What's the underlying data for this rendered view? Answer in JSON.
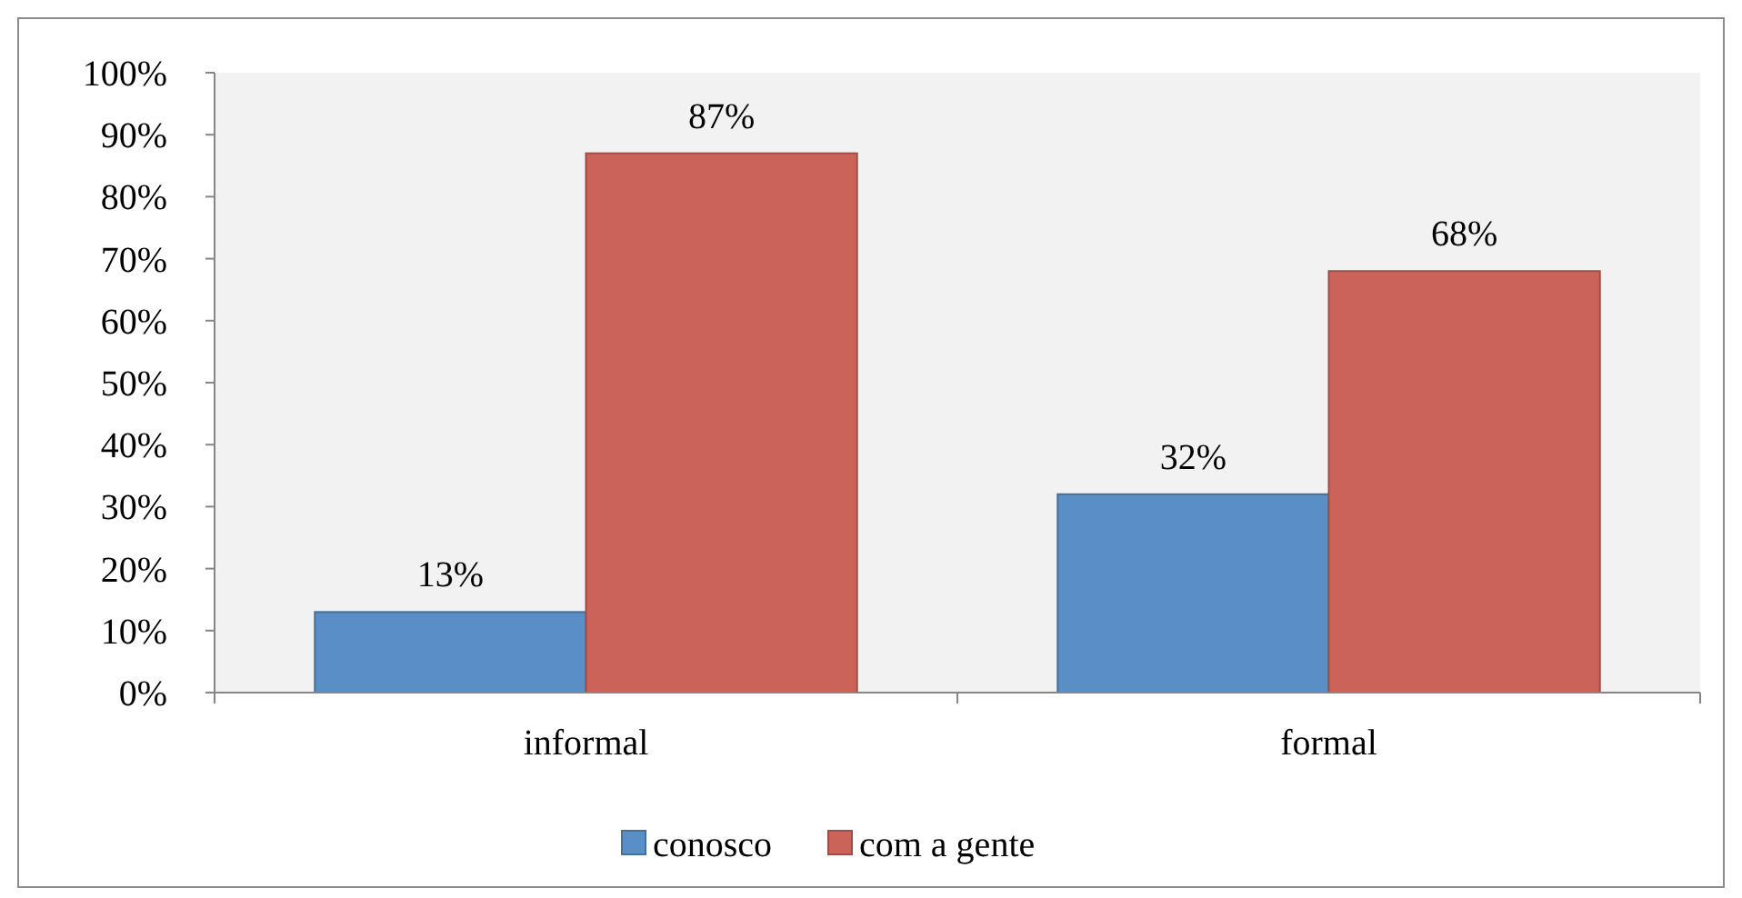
{
  "chart_data": {
    "type": "bar",
    "categories": [
      "informal",
      "formal"
    ],
    "series": [
      {
        "name": "conosco",
        "color": "#5a8ec6",
        "values": [
          13,
          32
        ],
        "value_labels": [
          "13%",
          "32%"
        ]
      },
      {
        "name": "com a gente",
        "color": "#cc6358",
        "values": [
          87,
          68
        ],
        "value_labels": [
          "87%",
          "68%"
        ]
      }
    ],
    "ylim": [
      0,
      100
    ],
    "yticks": [
      {
        "value": 0,
        "label": "0%"
      },
      {
        "value": 10,
        "label": "10%"
      },
      {
        "value": 20,
        "label": "20%"
      },
      {
        "value": 30,
        "label": "30%"
      },
      {
        "value": 40,
        "label": "40%"
      },
      {
        "value": 50,
        "label": "50%"
      },
      {
        "value": 60,
        "label": "60%"
      },
      {
        "value": 70,
        "label": "70%"
      },
      {
        "value": 80,
        "label": "80%"
      },
      {
        "value": 90,
        "label": "90%"
      },
      {
        "value": 100,
        "label": "100%"
      }
    ],
    "grid": false,
    "legend": "bottom"
  }
}
